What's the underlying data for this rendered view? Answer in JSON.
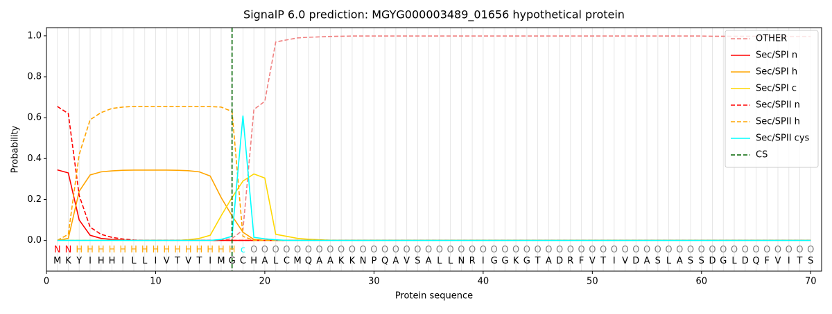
{
  "chart_data": {
    "type": "line",
    "title": "SignalP 6.0 prediction: MGYG000003489_01656 hypothetical protein",
    "xlabel": "Protein sequence",
    "ylabel": "Probability",
    "x": [
      1,
      2,
      3,
      4,
      5,
      6,
      7,
      8,
      9,
      10,
      11,
      12,
      13,
      14,
      15,
      16,
      17,
      18,
      19,
      20,
      21,
      22,
      23,
      24,
      25,
      26,
      27,
      28,
      29,
      30,
      31,
      32,
      33,
      34,
      35,
      36,
      37,
      38,
      39,
      40,
      41,
      42,
      43,
      44,
      45,
      46,
      47,
      48,
      49,
      50,
      51,
      52,
      53,
      54,
      55,
      56,
      57,
      58,
      59,
      60,
      61,
      62,
      63,
      64,
      65,
      66,
      67,
      68,
      69,
      70
    ],
    "series": [
      {
        "name": "OTHER",
        "color": "#f08080",
        "style": "dashed",
        "values": [
          0,
          0,
          0,
          0,
          0,
          0,
          0,
          0,
          0,
          0,
          0,
          0,
          0,
          0,
          0,
          0,
          0.01,
          0.05,
          0.64,
          0.68,
          0.97,
          0.98,
          0.99,
          0.993,
          0.995,
          0.997,
          0.998,
          0.999,
          0.999,
          0.999,
          0.999,
          0.999,
          0.999,
          0.999,
          0.999,
          0.999,
          0.999,
          0.999,
          0.999,
          0.999,
          0.999,
          0.999,
          0.999,
          0.999,
          0.999,
          0.999,
          0.999,
          0.999,
          0.999,
          0.999,
          0.999,
          0.999,
          0.999,
          0.999,
          0.999,
          0.999,
          0.999,
          0.999,
          0.999,
          0.999,
          0.998,
          0.998,
          0.998,
          0.998,
          0.998,
          0.998,
          0.997,
          0.997,
          0.997,
          0.997
        ]
      },
      {
        "name": "Sec/SPI n",
        "color": "#ff0000",
        "style": "solid",
        "values": [
          0.345,
          0.33,
          0.1,
          0.025,
          0.01,
          0.005,
          0.002,
          0,
          0,
          0,
          0,
          0,
          0,
          0,
          0,
          0,
          0,
          0,
          0,
          0,
          0,
          0,
          0,
          0,
          0,
          0,
          0,
          0,
          0,
          0,
          0,
          0,
          0,
          0,
          0,
          0,
          0,
          0,
          0,
          0,
          0,
          0,
          0,
          0,
          0,
          0,
          0,
          0,
          0,
          0,
          0,
          0,
          0,
          0,
          0,
          0,
          0,
          0,
          0,
          0,
          0,
          0,
          0,
          0,
          0,
          0,
          0,
          0,
          0,
          0
        ]
      },
      {
        "name": "Sec/SPI h",
        "color": "#ffa500",
        "style": "solid",
        "values": [
          0,
          0.01,
          0.24,
          0.32,
          0.335,
          0.34,
          0.343,
          0.344,
          0.344,
          0.344,
          0.344,
          0.343,
          0.341,
          0.335,
          0.315,
          0.21,
          0.12,
          0.04,
          0.005,
          0,
          0,
          0,
          0,
          0,
          0,
          0,
          0,
          0,
          0,
          0,
          0,
          0,
          0,
          0,
          0,
          0,
          0,
          0,
          0,
          0,
          0,
          0,
          0,
          0,
          0,
          0,
          0,
          0,
          0,
          0,
          0,
          0,
          0,
          0,
          0,
          0,
          0,
          0,
          0,
          0,
          0,
          0,
          0,
          0,
          0,
          0,
          0,
          0,
          0,
          0
        ]
      },
      {
        "name": "Sec/SPI c",
        "color": "#ffd700",
        "style": "solid",
        "values": [
          0,
          0,
          0,
          0,
          0,
          0,
          0,
          0,
          0,
          0,
          0,
          0,
          0.003,
          0.01,
          0.025,
          0.12,
          0.21,
          0.29,
          0.325,
          0.305,
          0.03,
          0.02,
          0.01,
          0.006,
          0.003,
          0.001,
          0,
          0,
          0,
          0,
          0,
          0,
          0,
          0,
          0,
          0,
          0,
          0,
          0,
          0,
          0,
          0,
          0,
          0,
          0,
          0,
          0,
          0,
          0,
          0,
          0,
          0,
          0,
          0,
          0,
          0,
          0,
          0,
          0,
          0,
          0,
          0,
          0,
          0,
          0,
          0,
          0,
          0,
          0,
          0
        ]
      },
      {
        "name": "Sec/SPII n",
        "color": "#ff0000",
        "style": "dashed",
        "values": [
          0.655,
          0.62,
          0.22,
          0.065,
          0.03,
          0.015,
          0.007,
          0.002,
          0,
          0,
          0,
          0,
          0,
          0,
          0,
          0,
          0,
          0,
          0,
          0,
          0,
          0,
          0,
          0,
          0,
          0,
          0,
          0,
          0,
          0,
          0,
          0,
          0,
          0,
          0,
          0,
          0,
          0,
          0,
          0,
          0,
          0,
          0,
          0,
          0,
          0,
          0,
          0,
          0,
          0,
          0,
          0,
          0,
          0,
          0,
          0,
          0,
          0,
          0,
          0,
          0,
          0,
          0,
          0,
          0,
          0,
          0,
          0,
          0,
          0
        ]
      },
      {
        "name": "Sec/SPII h",
        "color": "#ffa500",
        "style": "dashed",
        "values": [
          0,
          0.03,
          0.42,
          0.59,
          0.625,
          0.645,
          0.652,
          0.655,
          0.655,
          0.655,
          0.655,
          0.655,
          0.655,
          0.654,
          0.654,
          0.652,
          0.63,
          0.02,
          0,
          0,
          0,
          0,
          0,
          0,
          0,
          0,
          0,
          0,
          0,
          0,
          0,
          0,
          0,
          0,
          0,
          0,
          0,
          0,
          0,
          0,
          0,
          0,
          0,
          0,
          0,
          0,
          0,
          0,
          0,
          0,
          0,
          0,
          0,
          0,
          0,
          0,
          0,
          0,
          0,
          0,
          0,
          0,
          0,
          0,
          0,
          0,
          0,
          0,
          0,
          0
        ]
      },
      {
        "name": "Sec/SPII cys",
        "color": "#00ffff",
        "style": "solid",
        "values": [
          0,
          0,
          0,
          0,
          0,
          0,
          0,
          0,
          0,
          0,
          0,
          0,
          0,
          0,
          0,
          0.005,
          0.02,
          0.61,
          0.015,
          0.008,
          0.003,
          0,
          0,
          0,
          0,
          0,
          0,
          0,
          0,
          0,
          0,
          0,
          0,
          0,
          0,
          0,
          0,
          0,
          0,
          0,
          0,
          0,
          0,
          0,
          0,
          0,
          0,
          0,
          0,
          0,
          0,
          0,
          0,
          0,
          0,
          0,
          0,
          0,
          0,
          0,
          0,
          0,
          0,
          0,
          0,
          0,
          0,
          0,
          0,
          0
        ]
      }
    ],
    "cs": {
      "name": "CS",
      "x": 17,
      "color": "#006400"
    },
    "residue_labels": [
      "N",
      "N",
      "H",
      "H",
      "H",
      "H",
      "H",
      "H",
      "H",
      "H",
      "H",
      "H",
      "H",
      "H",
      "H",
      "H",
      "H",
      "c",
      "O",
      "O",
      "O",
      "O",
      "O",
      "O",
      "O",
      "O",
      "O",
      "O",
      "O",
      "O",
      "O",
      "O",
      "O",
      "O",
      "O",
      "O",
      "O",
      "O",
      "O",
      "O",
      "O",
      "O",
      "O",
      "O",
      "O",
      "O",
      "O",
      "O",
      "O",
      "O",
      "O",
      "O",
      "O",
      "O",
      "O",
      "O",
      "O",
      "O",
      "O",
      "O",
      "O",
      "O",
      "O",
      "O",
      "O",
      "O",
      "O",
      "O",
      "O",
      "O"
    ],
    "label_colors": {
      "N": "#ff0000",
      "H": "#ffa500",
      "c": "#00ffff",
      "O": "#808080"
    },
    "sequence": [
      "M",
      "K",
      "Y",
      "I",
      "H",
      "H",
      "I",
      "L",
      "L",
      "I",
      "V",
      "T",
      "V",
      "T",
      "I",
      "M",
      "G",
      "C",
      "H",
      "A",
      "L",
      "C",
      "M",
      "Q",
      "A",
      "A",
      "K",
      "K",
      "N",
      "P",
      "Q",
      "A",
      "V",
      "S",
      "A",
      "L",
      "L",
      "N",
      "R",
      "I",
      "G",
      "G",
      "K",
      "G",
      "T",
      "A",
      "D",
      "R",
      "F",
      "V",
      "T",
      "I",
      "V",
      "D",
      "A",
      "S",
      "L",
      "A",
      "S",
      "S",
      "D",
      "G",
      "L",
      "D",
      "Q",
      "F",
      "V",
      "I",
      "T",
      "S"
    ],
    "xlim": [
      0,
      71
    ],
    "ylim": [
      -0.15,
      1.04
    ],
    "xticks": [
      0,
      10,
      20,
      30,
      40,
      50,
      60,
      70
    ],
    "yticks": [
      {
        "value": 0,
        "label": "0.0"
      },
      {
        "value": 0.2,
        "label": "0.2"
      },
      {
        "value": 0.4,
        "label": "0.4"
      },
      {
        "value": 0.6,
        "label": "0.6"
      },
      {
        "value": 0.8,
        "label": "0.8"
      },
      {
        "value": 1,
        "label": "1.0"
      }
    ],
    "grid": true,
    "legend": "upper right"
  }
}
